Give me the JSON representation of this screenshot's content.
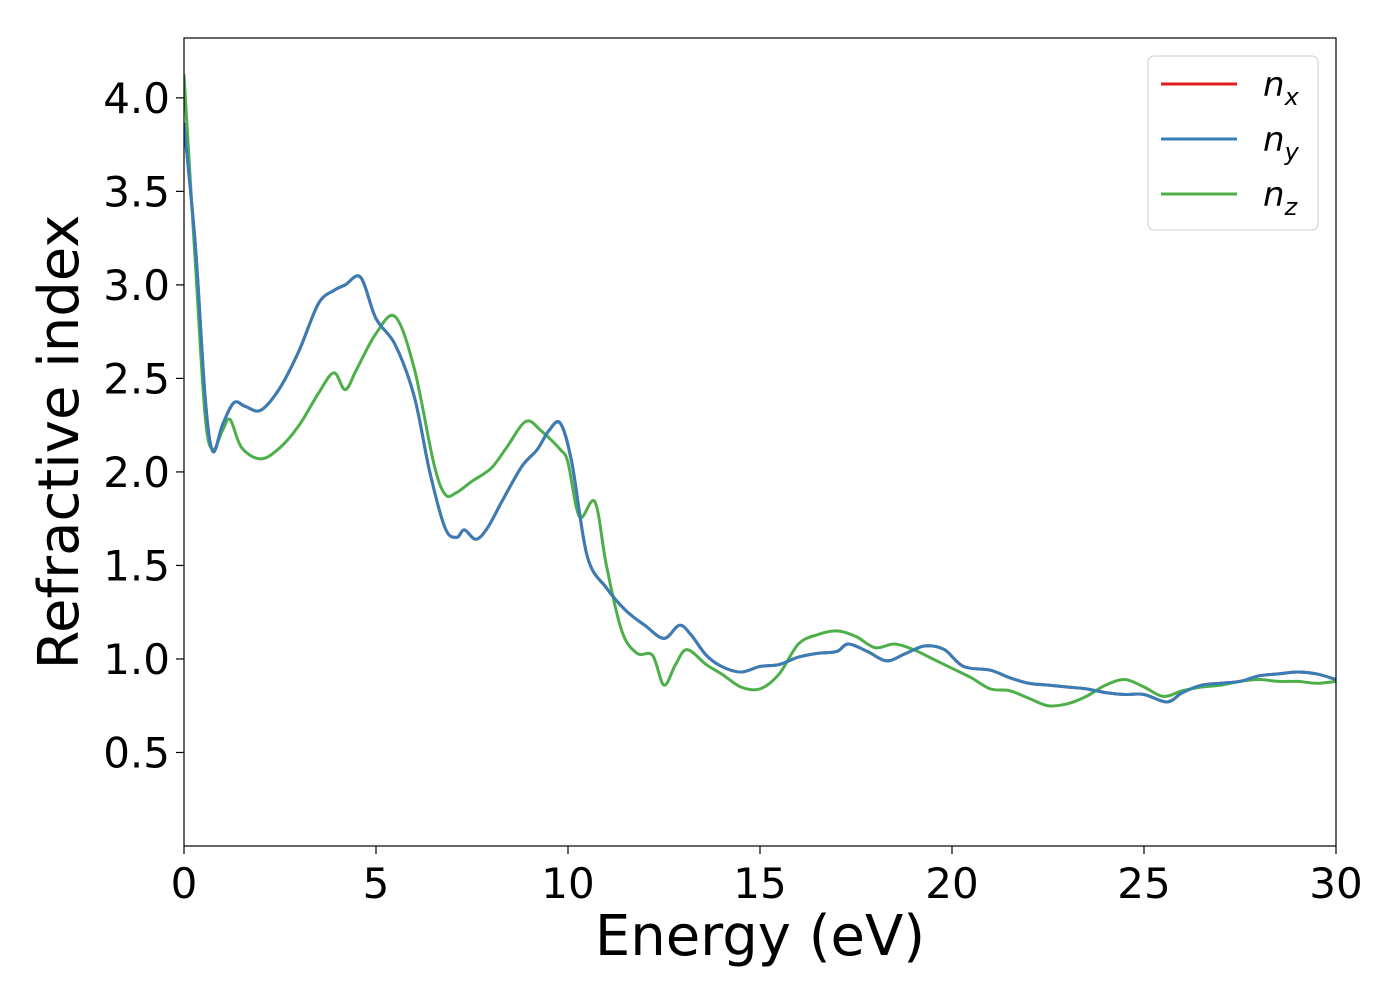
{
  "chart_data": {
    "type": "line",
    "xlabel": "Energy (eV)",
    "ylabel": "Refractive index",
    "xlim": [
      0,
      30
    ],
    "ylim": [
      0.0,
      4.32
    ],
    "xticks": [
      0,
      5,
      10,
      15,
      20,
      25,
      30
    ],
    "xtick_labels": [
      "0",
      "5",
      "10",
      "15",
      "20",
      "25",
      "30"
    ],
    "yticks": [
      0.5,
      1.0,
      1.5,
      2.0,
      2.5,
      3.0,
      3.5,
      4.0
    ],
    "ytick_labels": [
      "0.5",
      "1.0",
      "1.5",
      "2.0",
      "2.5",
      "3.0",
      "3.5",
      "4.0"
    ],
    "grid": false,
    "legend_position": "top-right",
    "series": [
      {
        "name": "n_x",
        "legend_base": "n",
        "legend_sub": "x",
        "color": "#e41a1c",
        "x": [
          0,
          0.3,
          0.55,
          0.75,
          1.0,
          1.3,
          1.6,
          2.0,
          2.5,
          3.0,
          3.5,
          3.9,
          4.2,
          4.6,
          5.0,
          5.5,
          6.0,
          6.4,
          6.8,
          7.1,
          7.3,
          7.6,
          7.9,
          8.3,
          8.8,
          9.2,
          9.5,
          9.8,
          10.1,
          10.5,
          11.0,
          11.5,
          12.0,
          12.5,
          12.9,
          13.2,
          13.6,
          14.0,
          14.5,
          15.0,
          15.5,
          16.0,
          16.5,
          17.0,
          17.3,
          17.8,
          18.3,
          18.8,
          19.3,
          19.8,
          20.3,
          21.0,
          21.5,
          22.0,
          22.5,
          23.0,
          23.5,
          24.0,
          24.5,
          25.0,
          25.6,
          26.0,
          26.5,
          27.0,
          27.5,
          28.0,
          28.5,
          29.0,
          29.5,
          30.0
        ],
        "y": [
          3.86,
          3.2,
          2.4,
          2.11,
          2.25,
          2.37,
          2.35,
          2.33,
          2.45,
          2.65,
          2.9,
          2.97,
          3.0,
          3.04,
          2.82,
          2.68,
          2.4,
          2.0,
          1.7,
          1.65,
          1.69,
          1.64,
          1.7,
          1.85,
          2.03,
          2.12,
          2.22,
          2.26,
          2.05,
          1.55,
          1.38,
          1.26,
          1.18,
          1.11,
          1.18,
          1.13,
          1.02,
          0.96,
          0.93,
          0.96,
          0.97,
          1.01,
          1.03,
          1.04,
          1.08,
          1.04,
          0.99,
          1.03,
          1.07,
          1.05,
          0.96,
          0.94,
          0.9,
          0.87,
          0.86,
          0.85,
          0.84,
          0.82,
          0.81,
          0.81,
          0.77,
          0.82,
          0.86,
          0.87,
          0.88,
          0.91,
          0.92,
          0.93,
          0.92,
          0.89
        ]
      },
      {
        "name": "n_y",
        "legend_base": "n",
        "legend_sub": "y",
        "color": "#377eb8",
        "x": [
          0,
          0.3,
          0.55,
          0.75,
          1.0,
          1.3,
          1.6,
          2.0,
          2.5,
          3.0,
          3.5,
          3.9,
          4.2,
          4.6,
          5.0,
          5.5,
          6.0,
          6.4,
          6.8,
          7.1,
          7.3,
          7.6,
          7.9,
          8.3,
          8.8,
          9.2,
          9.5,
          9.8,
          10.1,
          10.5,
          11.0,
          11.5,
          12.0,
          12.5,
          12.9,
          13.2,
          13.6,
          14.0,
          14.5,
          15.0,
          15.5,
          16.0,
          16.5,
          17.0,
          17.3,
          17.8,
          18.3,
          18.8,
          19.3,
          19.8,
          20.3,
          21.0,
          21.5,
          22.0,
          22.5,
          23.0,
          23.5,
          24.0,
          24.5,
          25.0,
          25.6,
          26.0,
          26.5,
          27.0,
          27.5,
          28.0,
          28.5,
          29.0,
          29.5,
          30.0
        ],
        "y": [
          3.86,
          3.2,
          2.4,
          2.11,
          2.25,
          2.37,
          2.35,
          2.33,
          2.45,
          2.65,
          2.9,
          2.97,
          3.0,
          3.04,
          2.82,
          2.68,
          2.4,
          2.0,
          1.7,
          1.65,
          1.69,
          1.64,
          1.7,
          1.85,
          2.03,
          2.12,
          2.22,
          2.26,
          2.05,
          1.55,
          1.38,
          1.26,
          1.18,
          1.11,
          1.18,
          1.13,
          1.02,
          0.96,
          0.93,
          0.96,
          0.97,
          1.01,
          1.03,
          1.04,
          1.08,
          1.04,
          0.99,
          1.03,
          1.07,
          1.05,
          0.96,
          0.94,
          0.9,
          0.87,
          0.86,
          0.85,
          0.84,
          0.82,
          0.81,
          0.81,
          0.77,
          0.82,
          0.86,
          0.87,
          0.88,
          0.91,
          0.92,
          0.93,
          0.92,
          0.89
        ]
      },
      {
        "name": "n_z",
        "legend_base": "n",
        "legend_sub": "z",
        "color": "#4daf4a",
        "x": [
          0,
          0.3,
          0.55,
          0.75,
          1.0,
          1.2,
          1.5,
          2.0,
          2.5,
          3.0,
          3.5,
          3.9,
          4.2,
          4.5,
          5.0,
          5.5,
          6.0,
          6.5,
          6.8,
          7.1,
          7.5,
          8.0,
          8.4,
          8.9,
          9.3,
          9.8,
          10.0,
          10.3,
          10.7,
          11.0,
          11.4,
          11.8,
          12.2,
          12.5,
          12.8,
          13.1,
          13.6,
          14.0,
          14.5,
          15.0,
          15.5,
          16.0,
          16.5,
          17.0,
          17.5,
          18.0,
          18.5,
          19.0,
          19.5,
          20.0,
          20.5,
          21.0,
          21.5,
          22.0,
          22.5,
          23.0,
          23.5,
          24.0,
          24.5,
          25.0,
          25.5,
          26.0,
          26.5,
          27.0,
          27.5,
          28.0,
          28.5,
          29.0,
          29.5,
          30.0
        ],
        "y": [
          4.12,
          3.1,
          2.3,
          2.12,
          2.22,
          2.28,
          2.13,
          2.07,
          2.13,
          2.25,
          2.42,
          2.53,
          2.44,
          2.55,
          2.74,
          2.83,
          2.55,
          2.05,
          1.88,
          1.89,
          1.95,
          2.02,
          2.13,
          2.27,
          2.22,
          2.12,
          2.05,
          1.76,
          1.84,
          1.5,
          1.15,
          1.03,
          1.02,
          0.86,
          0.97,
          1.05,
          0.97,
          0.92,
          0.85,
          0.84,
          0.92,
          1.08,
          1.13,
          1.15,
          1.12,
          1.06,
          1.08,
          1.05,
          1.0,
          0.95,
          0.9,
          0.84,
          0.83,
          0.79,
          0.75,
          0.76,
          0.8,
          0.86,
          0.89,
          0.85,
          0.8,
          0.83,
          0.85,
          0.86,
          0.88,
          0.89,
          0.88,
          0.88,
          0.87,
          0.88
        ]
      }
    ]
  }
}
